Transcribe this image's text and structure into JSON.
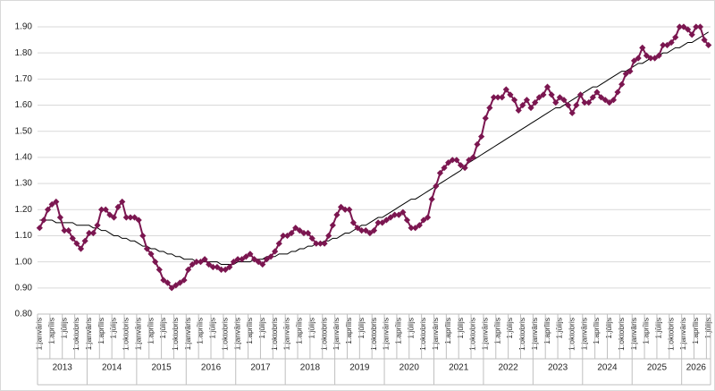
{
  "chart_data": {
    "type": "line",
    "categories": [
      "1.janvāris",
      null,
      null,
      "1.aprīlis",
      null,
      null,
      "1.jūlijs",
      null,
      null,
      "1.oktobris",
      null,
      null,
      "1.janvāris",
      null,
      null,
      "1.aprīlis",
      null,
      null,
      "1.jūlijs",
      null,
      null,
      "1.oktobris",
      null,
      null,
      "1.janvāris",
      null,
      null,
      "1.aprīlis",
      null,
      null,
      "1.jūlijs",
      null,
      null,
      "1.oktobris",
      null,
      null,
      "1.janvāris",
      null,
      null,
      "1.aprīlis",
      null,
      null,
      "1.jūlijs",
      null,
      null,
      "1.oktobris",
      null,
      null,
      "1.janvāris",
      null,
      null,
      "1.aprīlis",
      null,
      null,
      "1.jūlijs",
      null,
      null,
      "1.oktobris",
      null,
      null,
      "1.janvāris",
      null,
      null,
      "1.aprīlis",
      null,
      null,
      "1.jūlijs",
      null,
      null,
      "1.oktobris",
      null,
      null,
      "1.janvāris",
      null,
      null,
      "1.aprīlis",
      null,
      null,
      "1.jūlijs",
      null,
      null,
      "1.oktobris",
      null,
      null,
      "1.janvāris",
      null,
      null,
      "1.aprīlis",
      null,
      null,
      "1.jūlijs",
      null,
      null,
      "1.oktobris",
      null,
      null,
      "1.janvāris",
      null,
      null,
      "1.aprīlis",
      null,
      null,
      "1.jūlijs",
      null,
      null,
      "1.oktobris",
      null,
      null,
      "1.janvāris",
      null,
      null,
      "1.aprīlis",
      null,
      null,
      "1.jūlijs",
      null,
      null,
      "1.oktobris",
      null,
      null,
      "1.janvāris",
      null,
      null,
      "1.aprīlis",
      null,
      null,
      "1.jūlijs",
      null,
      null,
      "1.oktobris",
      null,
      null,
      "1.janvāris",
      null,
      null,
      "1.aprīlis",
      null,
      null,
      "1.jūlijs",
      null,
      null,
      "1.oktobris",
      null,
      null,
      "1.janvāris",
      null,
      null,
      "1.aprīlis",
      null,
      null,
      "1.jūlijs",
      null,
      null,
      "1.oktobris",
      null,
      null,
      "1.janvāris",
      null,
      null,
      "1.aprīlis",
      null,
      null,
      "1.jūlijs"
    ],
    "years": [
      "2013",
      "2014",
      "2015",
      "2016",
      "2017",
      "2018",
      "2019",
      "2020",
      "2021",
      "2022",
      "2023",
      "2024",
      "2025",
      "2026"
    ],
    "series": [
      {
        "color": "#7b1650",
        "marker": "diamond",
        "values": [
          1.13,
          1.16,
          1.2,
          1.22,
          1.23,
          1.17,
          1.12,
          1.12,
          1.09,
          1.07,
          1.05,
          1.08,
          1.11,
          1.11,
          1.14,
          1.2,
          1.2,
          1.18,
          1.17,
          1.21,
          1.23,
          1.17,
          1.17,
          1.17,
          1.16,
          1.1,
          1.05,
          1.03,
          1.0,
          0.97,
          0.93,
          0.92,
          0.9,
          0.91,
          0.92,
          0.93,
          0.97,
          0.99,
          1.0,
          1.0,
          1.01,
          0.99,
          0.98,
          0.98,
          0.97,
          0.97,
          0.98,
          1.0,
          1.01,
          1.01,
          1.02,
          1.03,
          1.01,
          1.0,
          0.99,
          1.01,
          1.02,
          1.04,
          1.07,
          1.1,
          1.1,
          1.11,
          1.13,
          1.12,
          1.11,
          1.11,
          1.09,
          1.07,
          1.07,
          1.07,
          1.1,
          1.14,
          1.18,
          1.21,
          1.2,
          1.2,
          1.15,
          1.13,
          1.12,
          1.12,
          1.11,
          1.12,
          1.15,
          1.15,
          1.16,
          1.17,
          1.18,
          1.18,
          1.19,
          1.16,
          1.13,
          1.13,
          1.14,
          1.16,
          1.17,
          1.24,
          1.29,
          1.34,
          1.36,
          1.38,
          1.39,
          1.39,
          1.37,
          1.36,
          1.39,
          1.4,
          1.45,
          1.48,
          1.55,
          1.59,
          1.63,
          1.63,
          1.63,
          1.66,
          1.64,
          1.62,
          1.58,
          1.6,
          1.62,
          1.59,
          1.61,
          1.63,
          1.64,
          1.67,
          1.64,
          1.61,
          1.63,
          1.62,
          1.6,
          1.57,
          1.6,
          1.64,
          1.61,
          1.61,
          1.63,
          1.65,
          1.63,
          1.62,
          1.61,
          1.62,
          1.65,
          1.68,
          1.72,
          1.73,
          1.77,
          1.78,
          1.82,
          1.79,
          1.78,
          1.78,
          1.79,
          1.83,
          1.83,
          1.84,
          1.86,
          1.9,
          1.9,
          1.89,
          1.87,
          1.9,
          1.9,
          1.85,
          1.83
        ]
      },
      {
        "color": "#000000",
        "marker": "none",
        "values": [
          1.16,
          1.16,
          1.16,
          1.16,
          1.15,
          1.15,
          1.15,
          1.15,
          1.15,
          1.14,
          1.14,
          1.14,
          1.14,
          1.13,
          1.13,
          1.12,
          1.12,
          1.11,
          1.1,
          1.1,
          1.09,
          1.09,
          1.08,
          1.08,
          1.07,
          1.06,
          1.06,
          1.05,
          1.05,
          1.04,
          1.04,
          1.03,
          1.03,
          1.02,
          1.02,
          1.01,
          1.01,
          1.01,
          1.0,
          1.0,
          1.0,
          1.0,
          1.0,
          1.0,
          0.99,
          0.99,
          0.99,
          0.99,
          1.0,
          1.0,
          1.0,
          1.0,
          1.01,
          1.01,
          1.01,
          1.02,
          1.02,
          1.02,
          1.03,
          1.03,
          1.03,
          1.04,
          1.04,
          1.05,
          1.05,
          1.06,
          1.06,
          1.07,
          1.07,
          1.08,
          1.08,
          1.09,
          1.09,
          1.1,
          1.11,
          1.11,
          1.12,
          1.13,
          1.14,
          1.14,
          1.15,
          1.16,
          1.17,
          1.17,
          1.18,
          1.19,
          1.2,
          1.21,
          1.22,
          1.23,
          1.24,
          1.24,
          1.25,
          1.26,
          1.27,
          1.28,
          1.29,
          1.3,
          1.31,
          1.32,
          1.33,
          1.34,
          1.35,
          1.37,
          1.38,
          1.39,
          1.4,
          1.41,
          1.42,
          1.43,
          1.44,
          1.45,
          1.46,
          1.47,
          1.48,
          1.49,
          1.5,
          1.51,
          1.52,
          1.53,
          1.54,
          1.55,
          1.56,
          1.57,
          1.58,
          1.59,
          1.59,
          1.6,
          1.61,
          1.62,
          1.63,
          1.64,
          1.65,
          1.66,
          1.67,
          1.67,
          1.68,
          1.69,
          1.7,
          1.71,
          1.72,
          1.73,
          1.73,
          1.74,
          1.75,
          1.76,
          1.76,
          1.77,
          1.78,
          1.78,
          1.79,
          1.8,
          1.8,
          1.81,
          1.82,
          1.82,
          1.83,
          1.84,
          1.84,
          1.85,
          1.86,
          1.87,
          1.88
        ]
      }
    ],
    "ylim": [
      0.8,
      1.9
    ],
    "yticks": [
      {
        "value": 0.8,
        "label": "0.80"
      },
      {
        "value": 0.9,
        "label": "0.90"
      },
      {
        "value": 1.0,
        "label": "1.00"
      },
      {
        "value": 1.1,
        "label": "1.10"
      },
      {
        "value": 1.2,
        "label": "1.20"
      },
      {
        "value": 1.3,
        "label": "1.30"
      },
      {
        "value": 1.4,
        "label": "1.40"
      },
      {
        "value": 1.5,
        "label": "1.50"
      },
      {
        "value": 1.6,
        "label": "1.60"
      },
      {
        "value": 1.7,
        "label": "1.70"
      },
      {
        "value": 1.8,
        "label": "1.80"
      },
      {
        "value": 1.9,
        "label": "1.90"
      }
    ],
    "grid": true
  }
}
